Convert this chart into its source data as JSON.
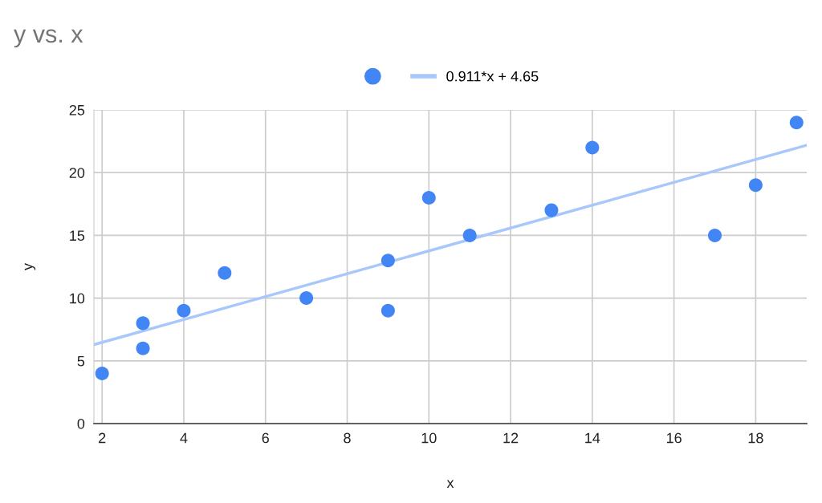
{
  "chart_data": {
    "type": "scatter",
    "title": "y vs. x",
    "xlabel": "x",
    "ylabel": "y",
    "series": [
      {
        "color": "#4285f4",
        "marker": "circle",
        "x": [
          2,
          3,
          3,
          4,
          5,
          7,
          9,
          9,
          10,
          11,
          13,
          14,
          17,
          18,
          19
        ],
        "values": [
          4,
          8,
          6,
          9,
          12,
          10,
          13,
          9,
          18,
          15,
          17,
          22,
          15,
          19,
          24
        ]
      },
      {
        "type": "line",
        "name": "0.911*x + 4.65",
        "color": "#a8c7fa",
        "x": [
          1.8,
          19.25
        ],
        "values": [
          6.29,
          22.19
        ]
      }
    ],
    "xlim": [
      1.8,
      19.25
    ],
    "xticks": [
      2,
      4,
      6,
      8,
      10,
      12,
      14,
      16,
      18
    ],
    "ylim": [
      0,
      25
    ],
    "yticks": [
      0,
      5,
      10,
      15,
      20,
      25
    ],
    "grid": true,
    "legend": "top"
  }
}
